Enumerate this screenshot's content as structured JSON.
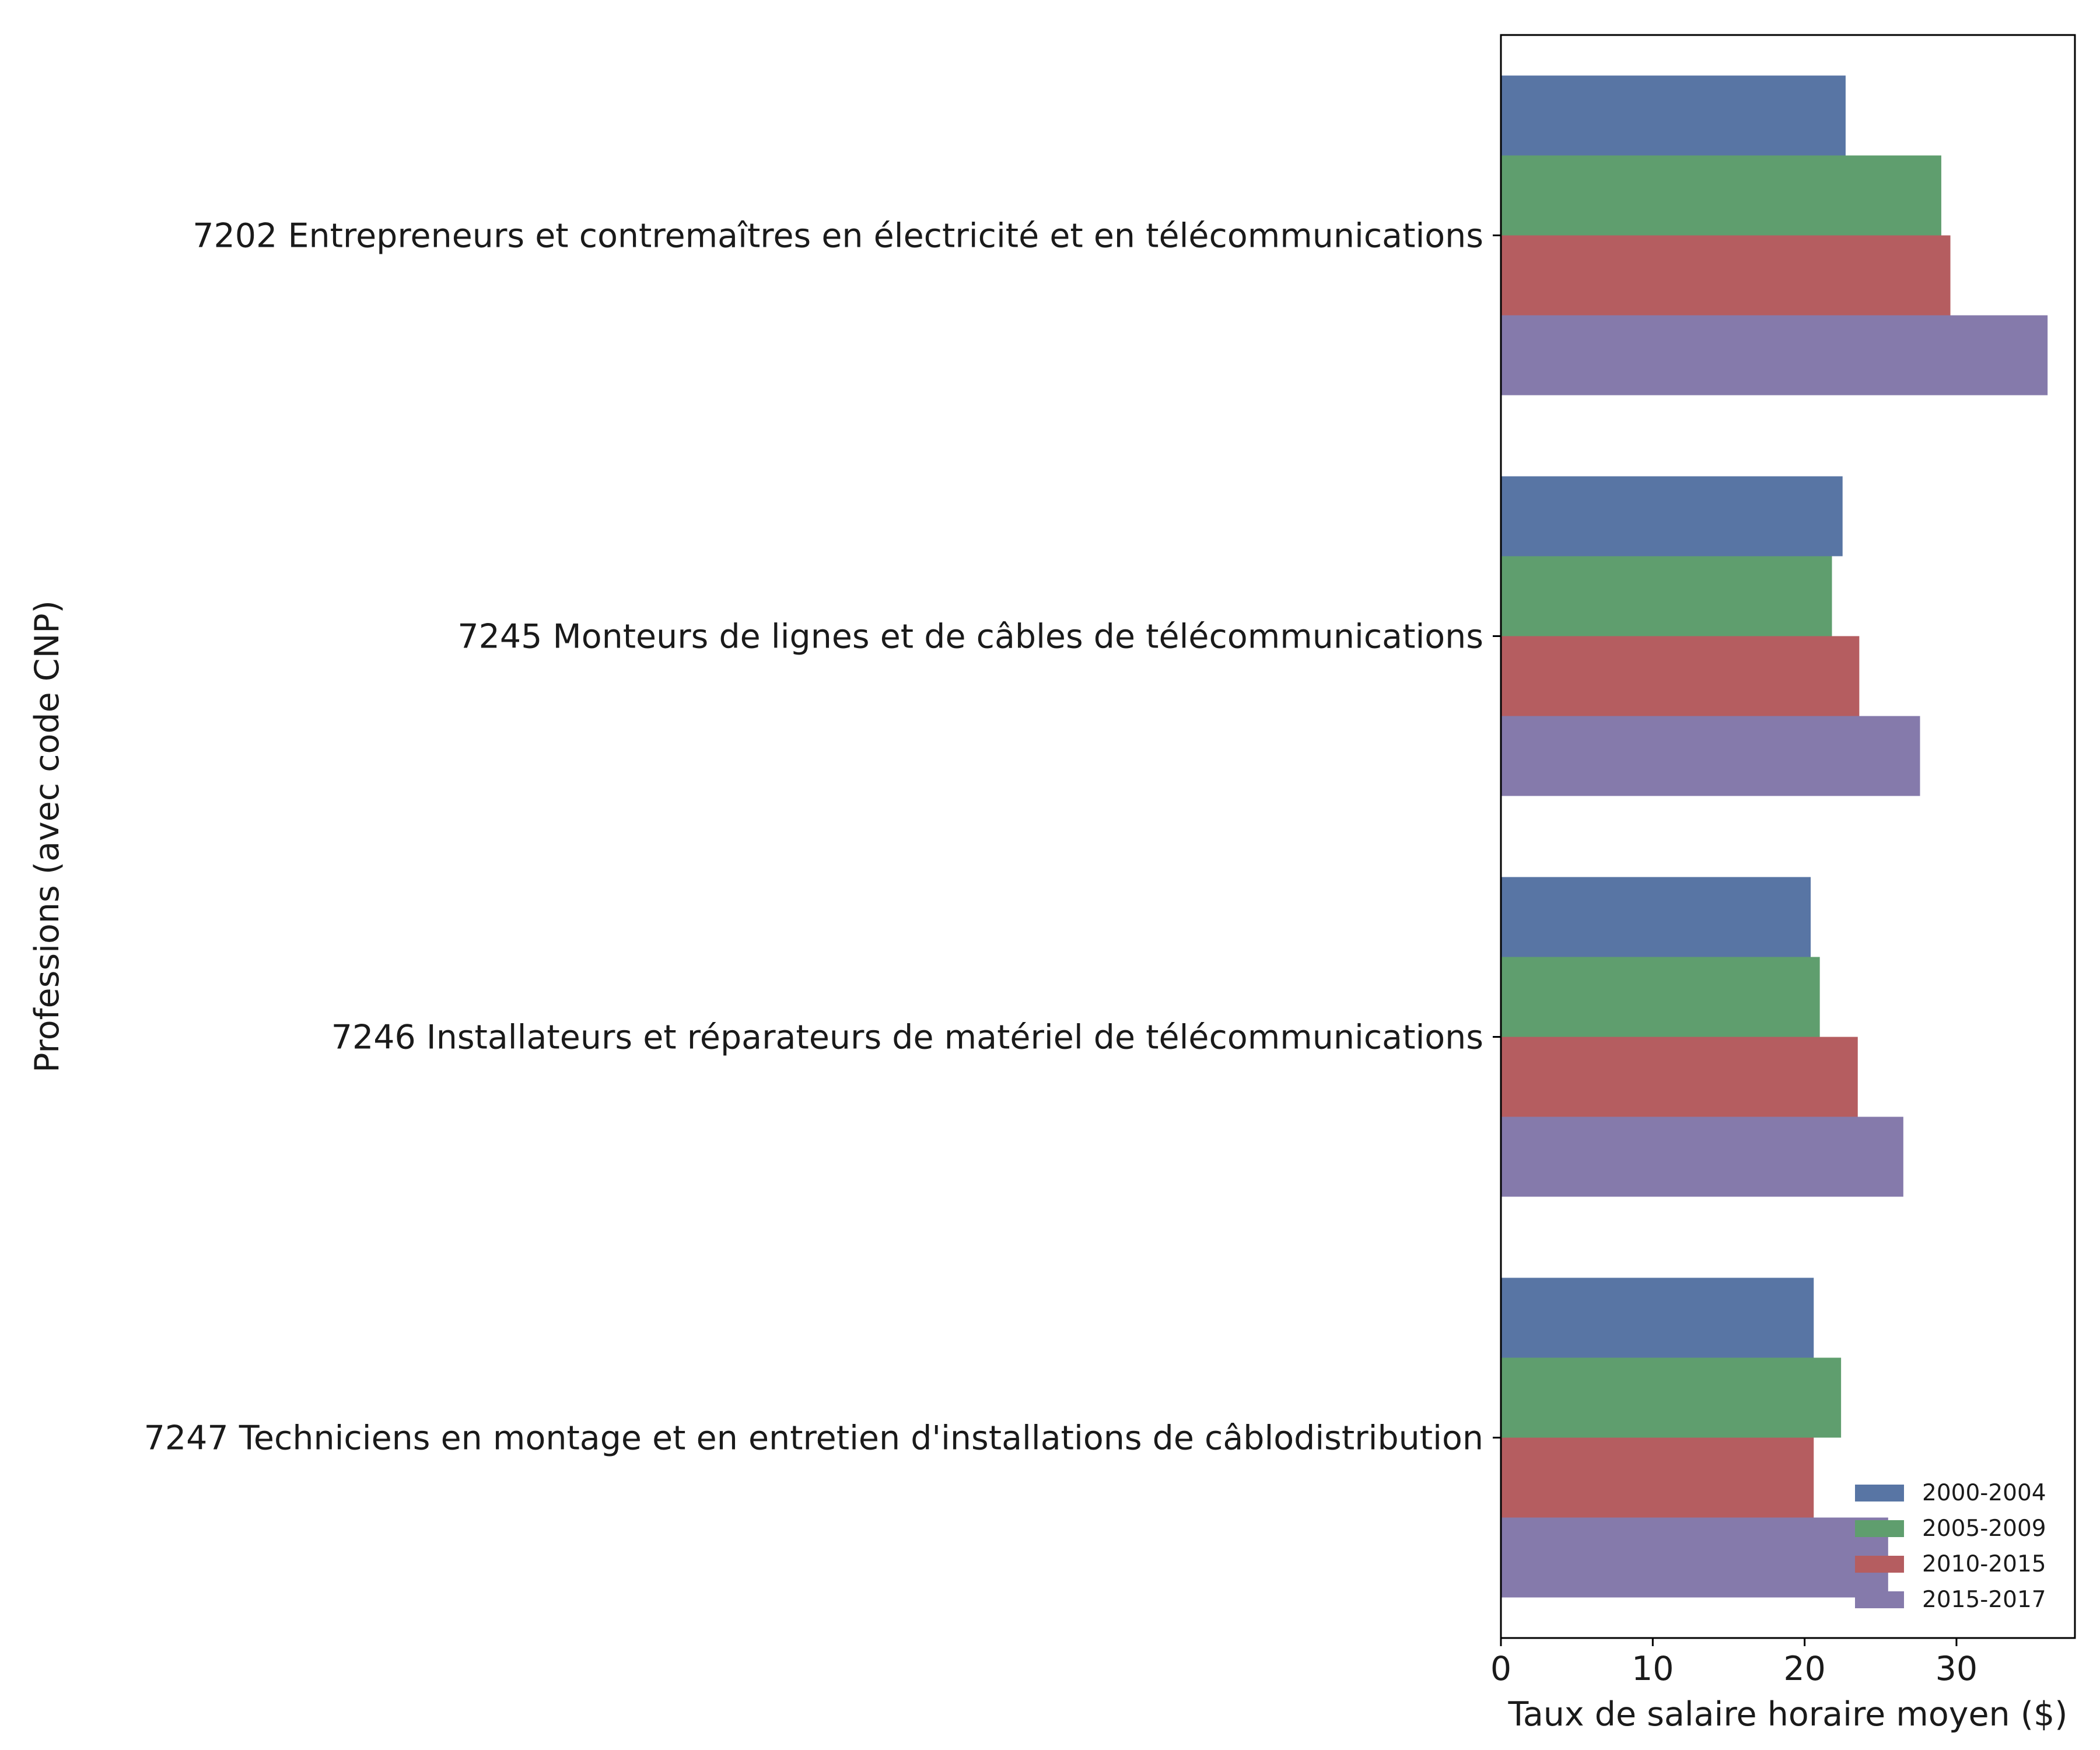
{
  "chart_data": {
    "type": "bar",
    "orientation": "horizontal",
    "title": "",
    "xlabel": "Taux de salaire horaire moyen ($)",
    "ylabel": "Professions (avec code CNP)",
    "categories": [
      "7202 Entrepreneurs et contremaîtres en électricité et en télécommunications",
      "7245 Monteurs de lignes et de câbles de télécommunications",
      "7246 Installateurs et réparateurs de matériel de télécommunications",
      "7247 Techniciens en montage et en entretien d'installations de câblodistribution"
    ],
    "series": [
      {
        "name": "2000-2004",
        "color": "#5875a4",
        "values": [
          22.7,
          22.5,
          20.4,
          20.6
        ]
      },
      {
        "name": "2005-2009",
        "color": "#5f9e6e",
        "values": [
          29.0,
          21.8,
          21.0,
          22.4
        ]
      },
      {
        "name": "2010-2015",
        "color": "#b55d60",
        "values": [
          29.6,
          23.6,
          23.5,
          20.6
        ]
      },
      {
        "name": "2015-2017",
        "color": "#857aab",
        "values": [
          36.0,
          27.6,
          26.5,
          25.5
        ]
      }
    ],
    "xlim": [
      0,
      37.8
    ],
    "xticks": [
      0,
      10,
      20,
      30
    ],
    "grid": false,
    "legend_position": "bottom-right"
  }
}
